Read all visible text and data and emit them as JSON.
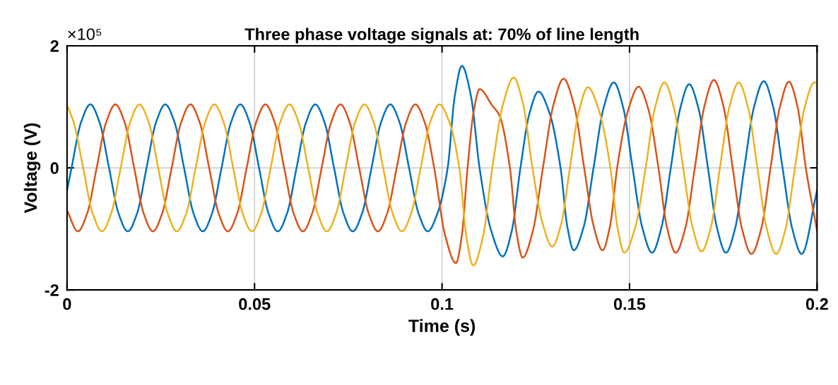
{
  "chart_data": {
    "type": "line",
    "title": "Three phase voltage signals at: 70% of line length",
    "xlabel": "Time (s)",
    "ylabel": "Voltage (V)",
    "annotations": [
      "×10⁵"
    ],
    "xlim": [
      0,
      0.2
    ],
    "xticks": [
      0,
      0.05,
      0.1,
      0.15,
      0.2
    ],
    "ylim": [
      -2,
      2
    ],
    "yticks": [
      -2,
      0,
      2
    ],
    "grid": true,
    "legend": false,
    "line_style": "solid",
    "marker": "none",
    "series": [
      {
        "color": "#0072bd",
        "x": [
          0,
          0.0012,
          0.0037,
          0.0062,
          0.0087,
          0.0112,
          0.0137,
          0.0162,
          0.0187,
          0.0212,
          0.0237,
          0.0262,
          0.0287,
          0.0312,
          0.0337,
          0.0362,
          0.0387,
          0.0412,
          0.0437,
          0.0462,
          0.0487,
          0.0512,
          0.0537,
          0.0562,
          0.0587,
          0.0612,
          0.0637,
          0.0662,
          0.0687,
          0.0712,
          0.0737,
          0.0762,
          0.0787,
          0.0812,
          0.0837,
          0.0862,
          0.0887,
          0.0912,
          0.0937,
          0.0962,
          0.0988,
          0.1015,
          0.1034,
          0.1053,
          0.1077,
          0.11,
          0.1131,
          0.1162,
          0.1186,
          0.1209,
          0.1233,
          0.1257,
          0.1287,
          0.1316,
          0.1334,
          0.1351,
          0.1378,
          0.1404,
          0.1431,
          0.1458,
          0.1483,
          0.1508,
          0.1534,
          0.156,
          0.1585,
          0.161,
          0.1635,
          0.1659,
          0.1684,
          0.1709,
          0.1733,
          0.1757,
          0.1782,
          0.1806,
          0.1832,
          0.1858,
          0.1883,
          0.1908,
          0.1934,
          0.1959,
          0.2
        ],
        "values": [
          -0.37,
          0,
          0.74,
          1.04,
          0.74,
          0,
          -0.74,
          -1.04,
          -0.74,
          0,
          0.74,
          1.04,
          0.74,
          0,
          -0.74,
          -1.04,
          -0.74,
          0,
          0.74,
          1.04,
          0.74,
          0,
          -0.74,
          -1.04,
          -0.74,
          0,
          0.74,
          1.04,
          0.74,
          0,
          -0.74,
          -1.04,
          -0.74,
          0,
          0.74,
          1.04,
          0.74,
          0,
          -0.74,
          -1.04,
          -0.74,
          0,
          1.18,
          1.67,
          1.18,
          0,
          -1.03,
          -1.45,
          -1.03,
          0,
          0.89,
          1.25,
          0.89,
          0,
          -0.96,
          -1.35,
          -0.96,
          0,
          0.99,
          1.4,
          0.99,
          0,
          -0.98,
          -1.39,
          -0.98,
          0,
          0.97,
          1.37,
          0.97,
          0,
          -0.98,
          -1.39,
          -0.98,
          0,
          1.0,
          1.42,
          1.0,
          0,
          -1.0,
          -1.41,
          -0.37
        ]
      },
      {
        "color": "#d95319",
        "x": [
          0,
          0.0029,
          0.0054,
          0.0079,
          0.0104,
          0.0129,
          0.0154,
          0.0179,
          0.0204,
          0.0229,
          0.0254,
          0.0279,
          0.0304,
          0.0329,
          0.0354,
          0.0379,
          0.0404,
          0.0429,
          0.0454,
          0.0479,
          0.0504,
          0.0529,
          0.0554,
          0.0579,
          0.0604,
          0.0629,
          0.0654,
          0.0679,
          0.0704,
          0.0729,
          0.0754,
          0.0779,
          0.0804,
          0.0829,
          0.0854,
          0.0879,
          0.0904,
          0.0929,
          0.0954,
          0.0979,
          0.1008,
          0.1037,
          0.1053,
          0.1068,
          0.1084,
          0.11,
          0.1134,
          0.1153,
          0.1181,
          0.1198,
          0.1215,
          0.1242,
          0.1269,
          0.1297,
          0.1324,
          0.1352,
          0.1379,
          0.1404,
          0.1428,
          0.1448,
          0.1467,
          0.1496,
          0.1524,
          0.1551,
          0.1577,
          0.16,
          0.1623,
          0.1649,
          0.1674,
          0.17,
          0.1725,
          0.175,
          0.1775,
          0.18,
          0.1825,
          0.1851,
          0.1876,
          0.1901,
          0.1925,
          0.1948,
          0.197,
          0.2
        ],
        "values": [
          -0.7,
          -1.04,
          -0.74,
          0,
          0.74,
          1.04,
          0.74,
          0,
          -0.74,
          -1.04,
          -0.74,
          0,
          0.74,
          1.04,
          0.74,
          0,
          -0.74,
          -1.04,
          -0.74,
          0,
          0.74,
          1.04,
          0.74,
          0,
          -0.74,
          -1.04,
          -0.74,
          0,
          0.74,
          1.04,
          0.74,
          0,
          -0.74,
          -1.04,
          -0.74,
          0,
          0.74,
          1.04,
          0.74,
          0,
          -1.1,
          -1.56,
          -1.1,
          0,
          0.91,
          1.29,
          1.02,
          0.86,
          0,
          -1.04,
          -1.47,
          -1.04,
          0,
          1.03,
          1.46,
          1.03,
          0,
          -0.95,
          -1.35,
          -0.95,
          0,
          0.94,
          1.33,
          0.94,
          0,
          -0.98,
          -1.39,
          -0.98,
          0,
          1.02,
          1.44,
          1.02,
          0,
          -1.0,
          -1.41,
          -1.0,
          0,
          1.0,
          1.41,
          1.0,
          0,
          -1.03
        ]
      },
      {
        "color": "#edb120",
        "x": [
          0,
          0.0018,
          0.0043,
          0.0068,
          0.0093,
          0.0118,
          0.0143,
          0.0168,
          0.0193,
          0.0218,
          0.0243,
          0.0268,
          0.0293,
          0.0318,
          0.0343,
          0.0368,
          0.0393,
          0.0418,
          0.0443,
          0.0468,
          0.0493,
          0.0518,
          0.0543,
          0.0568,
          0.0593,
          0.0618,
          0.0643,
          0.0668,
          0.0693,
          0.0718,
          0.0743,
          0.0768,
          0.0793,
          0.0818,
          0.0843,
          0.0868,
          0.0893,
          0.0918,
          0.0943,
          0.0968,
          0.0993,
          0.102,
          0.1046,
          0.1065,
          0.1083,
          0.1109,
          0.1134,
          0.1163,
          0.1191,
          0.1216,
          0.1241,
          0.1268,
          0.1294,
          0.1318,
          0.1341,
          0.1365,
          0.1389,
          0.1419,
          0.1449,
          0.1468,
          0.1486,
          0.1515,
          0.1543,
          0.1568,
          0.1593,
          0.1618,
          0.1643,
          0.1668,
          0.1692,
          0.1717,
          0.1741,
          0.1766,
          0.1791,
          0.1816,
          0.1841,
          0.1866,
          0.1891,
          0.1916,
          0.1941,
          0.1967,
          0.1993,
          0.2
        ],
        "values": [
          1.03,
          0.74,
          0,
          -0.74,
          -1.04,
          -0.74,
          0,
          0.74,
          1.04,
          0.74,
          0,
          -0.74,
          -1.04,
          -0.74,
          0,
          0.74,
          1.04,
          0.74,
          0,
          -0.74,
          -1.04,
          -0.74,
          0,
          0.74,
          1.04,
          0.74,
          0,
          -0.74,
          -1.04,
          -0.74,
          0,
          0.74,
          1.04,
          0.74,
          0,
          -0.74,
          -1.04,
          -0.74,
          0,
          0.74,
          1.04,
          0.74,
          0,
          -1.13,
          -1.6,
          -1.13,
          0,
          1.05,
          1.48,
          1.05,
          0,
          -0.91,
          -1.29,
          -0.91,
          0,
          0.93,
          1.32,
          0.93,
          0,
          -0.98,
          -1.39,
          -0.98,
          0,
          0.99,
          1.4,
          0.99,
          0,
          -0.97,
          -1.37,
          -0.97,
          0,
          0.99,
          1.4,
          0.99,
          0,
          -1.0,
          -1.41,
          -1.0,
          0,
          0.99,
          1.4,
          1.39
        ]
      }
    ]
  }
}
